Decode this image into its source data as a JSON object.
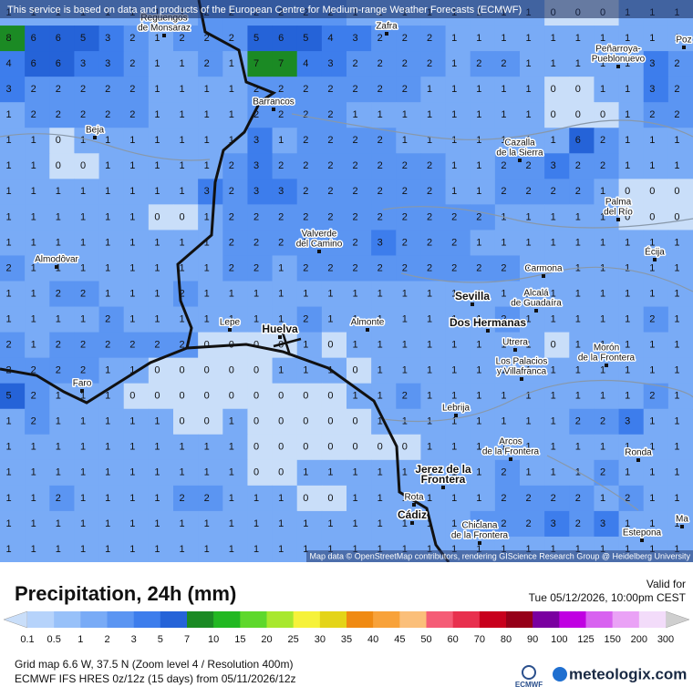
{
  "banner": "This service is based on data and products of the European Centre for Medium-range Weather Forecasts (ECMWF)",
  "attribution": "Map data © OpenStreetMap contributors, rendering GIScience Research Group @ Heidelberg University",
  "title": "Precipitation, 24h (mm)",
  "valid_label": "Valid for",
  "valid_time": "Tue 05/12/2026, 10:00pm CEST",
  "grid_info": "Grid map 6.6 W, 37.5 N (Zoom level 4 / Resolution 400m)",
  "model_info": "ECMWF IFS HRES 0z/12z (15 days) from 05/11/2026/12z",
  "logo_left": "ECMWF",
  "logo_right": "meteologix.com",
  "places": [
    [
      "Reguengos",
      "de Monsaraz"
    ],
    [
      "Zafra"
    ],
    [
      "Peñarroya-",
      "Pueblonuevo"
    ],
    [
      "Poz"
    ],
    [
      "Barrancos"
    ],
    [
      "Beja"
    ],
    [
      "Cazalla",
      "de la Sierra"
    ],
    [
      "Palma",
      "del Río"
    ],
    [
      "Valverde",
      "del Camino"
    ],
    [
      "Écija"
    ],
    [
      "Almodôvar"
    ],
    [
      "Carmona"
    ],
    [
      "Sevilla"
    ],
    [
      "Alcalá",
      "de Guadaíra"
    ],
    [
      "Lepe"
    ],
    [
      "Huelva"
    ],
    [
      "Almonte"
    ],
    [
      "Dos Hermanas"
    ],
    [
      "Utrera"
    ],
    [
      "Morón",
      "de la Frontera"
    ],
    [
      "Los Palacios",
      "y Villafranca"
    ],
    [
      "Faro"
    ],
    [
      "Lebrija"
    ],
    [
      "Arcos",
      "de la Frontera"
    ],
    [
      "Ronda"
    ],
    [
      "Jerez de la",
      "Frontera"
    ],
    [
      "Rota"
    ],
    [
      "Cádiz"
    ],
    [
      "Chiclana",
      "de la Frontera"
    ],
    [
      "Estepona"
    ],
    [
      "Ma"
    ]
  ],
  "grid": {
    "rows": [
      [
        1,
        1,
        1,
        1,
        1,
        1,
        1,
        1,
        2,
        2,
        2,
        2,
        2,
        2,
        1,
        1,
        1,
        1,
        1,
        1,
        1,
        1,
        0,
        0,
        0,
        1,
        1,
        1
      ],
      [
        8,
        6,
        6,
        5,
        3,
        2,
        1,
        2,
        2,
        2,
        5,
        6,
        5,
        4,
        3,
        2,
        2,
        2,
        1,
        1,
        1,
        1,
        1,
        1,
        1,
        1,
        1,
        1
      ],
      [
        4,
        6,
        6,
        3,
        3,
        2,
        1,
        1,
        2,
        1,
        7,
        7,
        4,
        3,
        2,
        2,
        2,
        2,
        1,
        2,
        2,
        1,
        1,
        1,
        1,
        1,
        3,
        2
      ],
      [
        3,
        2,
        2,
        2,
        2,
        2,
        1,
        1,
        1,
        1,
        2,
        2,
        2,
        2,
        2,
        2,
        2,
        1,
        1,
        1,
        1,
        1,
        0,
        0,
        1,
        1,
        3,
        2
      ],
      [
        1,
        2,
        2,
        2,
        2,
        2,
        1,
        1,
        1,
        1,
        2,
        2,
        2,
        2,
        1,
        1,
        1,
        1,
        1,
        1,
        1,
        1,
        0,
        0,
        0,
        1,
        2,
        2
      ],
      [
        1,
        1,
        0,
        1,
        1,
        1,
        1,
        1,
        1,
        1,
        3,
        1,
        2,
        2,
        2,
        2,
        1,
        1,
        1,
        1,
        1,
        1,
        1,
        6,
        2,
        1,
        1,
        1
      ],
      [
        1,
        1,
        0,
        0,
        1,
        1,
        1,
        1,
        1,
        2,
        3,
        2,
        2,
        2,
        2,
        2,
        2,
        2,
        1,
        1,
        2,
        2,
        3,
        2,
        2,
        1,
        1,
        1
      ],
      [
        1,
        1,
        1,
        1,
        1,
        1,
        1,
        1,
        3,
        2,
        3,
        3,
        2,
        2,
        2,
        2,
        2,
        2,
        1,
        1,
        2,
        2,
        2,
        2,
        1,
        0,
        0,
        0
      ],
      [
        1,
        1,
        1,
        1,
        1,
        1,
        0,
        0,
        1,
        2,
        2,
        2,
        2,
        2,
        2,
        2,
        2,
        2,
        2,
        2,
        1,
        1,
        1,
        1,
        1,
        0,
        0,
        0
      ],
      [
        1,
        1,
        1,
        1,
        1,
        1,
        1,
        1,
        1,
        2,
        2,
        2,
        2,
        2,
        2,
        3,
        2,
        2,
        2,
        1,
        1,
        1,
        1,
        1,
        1,
        1,
        1,
        1
      ],
      [
        2,
        1,
        1,
        1,
        1,
        1,
        1,
        1,
        1,
        2,
        2,
        1,
        2,
        2,
        2,
        2,
        2,
        2,
        2,
        2,
        2,
        1,
        1,
        1,
        1,
        1,
        1,
        1
      ],
      [
        1,
        1,
        2,
        2,
        1,
        1,
        1,
        2,
        1,
        1,
        1,
        1,
        1,
        1,
        1,
        1,
        1,
        1,
        1,
        1,
        1,
        1,
        1,
        1,
        1,
        1,
        1,
        1
      ],
      [
        1,
        1,
        1,
        1,
        2,
        1,
        1,
        1,
        1,
        1,
        1,
        1,
        2,
        1,
        1,
        1,
        1,
        1,
        1,
        1,
        2,
        1,
        1,
        1,
        1,
        1,
        2,
        1
      ],
      [
        2,
        1,
        2,
        2,
        2,
        2,
        2,
        2,
        0,
        0,
        0,
        0,
        1,
        0,
        1,
        1,
        1,
        1,
        1,
        1,
        1,
        1,
        0,
        1,
        1,
        1,
        1,
        1
      ],
      [
        2,
        2,
        2,
        2,
        1,
        1,
        0,
        0,
        0,
        0,
        0,
        1,
        1,
        1,
        0,
        1,
        1,
        1,
        1,
        1,
        1,
        1,
        1,
        1,
        1,
        1,
        1,
        1
      ],
      [
        5,
        2,
        1,
        1,
        1,
        0,
        0,
        0,
        0,
        0,
        0,
        0,
        0,
        0,
        1,
        1,
        2,
        1,
        1,
        1,
        1,
        1,
        1,
        1,
        1,
        1,
        2,
        1
      ],
      [
        1,
        2,
        1,
        1,
        1,
        1,
        1,
        0,
        0,
        1,
        0,
        0,
        0,
        0,
        0,
        1,
        1,
        1,
        1,
        1,
        1,
        1,
        1,
        2,
        2,
        3,
        1,
        1
      ],
      [
        1,
        1,
        1,
        1,
        1,
        1,
        1,
        1,
        1,
        1,
        0,
        0,
        0,
        0,
        0,
        0,
        0,
        1,
        1,
        1,
        1,
        1,
        1,
        1,
        1,
        1,
        1,
        1
      ],
      [
        1,
        1,
        1,
        1,
        1,
        1,
        1,
        1,
        1,
        1,
        0,
        0,
        1,
        1,
        1,
        1,
        1,
        1,
        1,
        1,
        2,
        1,
        1,
        1,
        2,
        1,
        1,
        1
      ],
      [
        1,
        1,
        2,
        1,
        1,
        1,
        1,
        2,
        2,
        1,
        1,
        1,
        0,
        0,
        1,
        1,
        1,
        1,
        1,
        1,
        2,
        2,
        2,
        2,
        1,
        2,
        1,
        1
      ],
      [
        1,
        1,
        1,
        1,
        1,
        1,
        1,
        1,
        1,
        1,
        1,
        1,
        1,
        1,
        1,
        1,
        1,
        1,
        1,
        2,
        2,
        2,
        3,
        2,
        3,
        1,
        1,
        1
      ],
      [
        1,
        1,
        1,
        1,
        1,
        1,
        1,
        1,
        1,
        1,
        1,
        1,
        1,
        1,
        1,
        1,
        1,
        1,
        1,
        1,
        1,
        1,
        1,
        1,
        1,
        1,
        1,
        1
      ]
    ]
  },
  "legend": {
    "ticks": [
      0.1,
      0.5,
      1,
      2,
      3,
      5,
      7,
      10,
      15,
      20,
      25,
      30,
      35,
      40,
      45,
      50,
      60,
      70,
      80,
      90,
      100,
      125,
      150,
      200,
      300
    ],
    "colors": [
      "#b6d3fb",
      "#98c1f9",
      "#79abf6",
      "#5b95f2",
      "#3d7dec",
      "#2563d8",
      "#1b8a24",
      "#22b822",
      "#5ed82c",
      "#a8e82e",
      "#f6f23a",
      "#e4d418",
      "#f08a12",
      "#f8a23a",
      "#fbbf7a",
      "#f55c76",
      "#e8304e",
      "#c8001c",
      "#960018",
      "#7a00a0",
      "#c000e2",
      "#d862f0",
      "#eaa2f6",
      "#f3dcfa"
    ],
    "below_color": "#c9def9",
    "above_color": "#cfcfcf"
  }
}
